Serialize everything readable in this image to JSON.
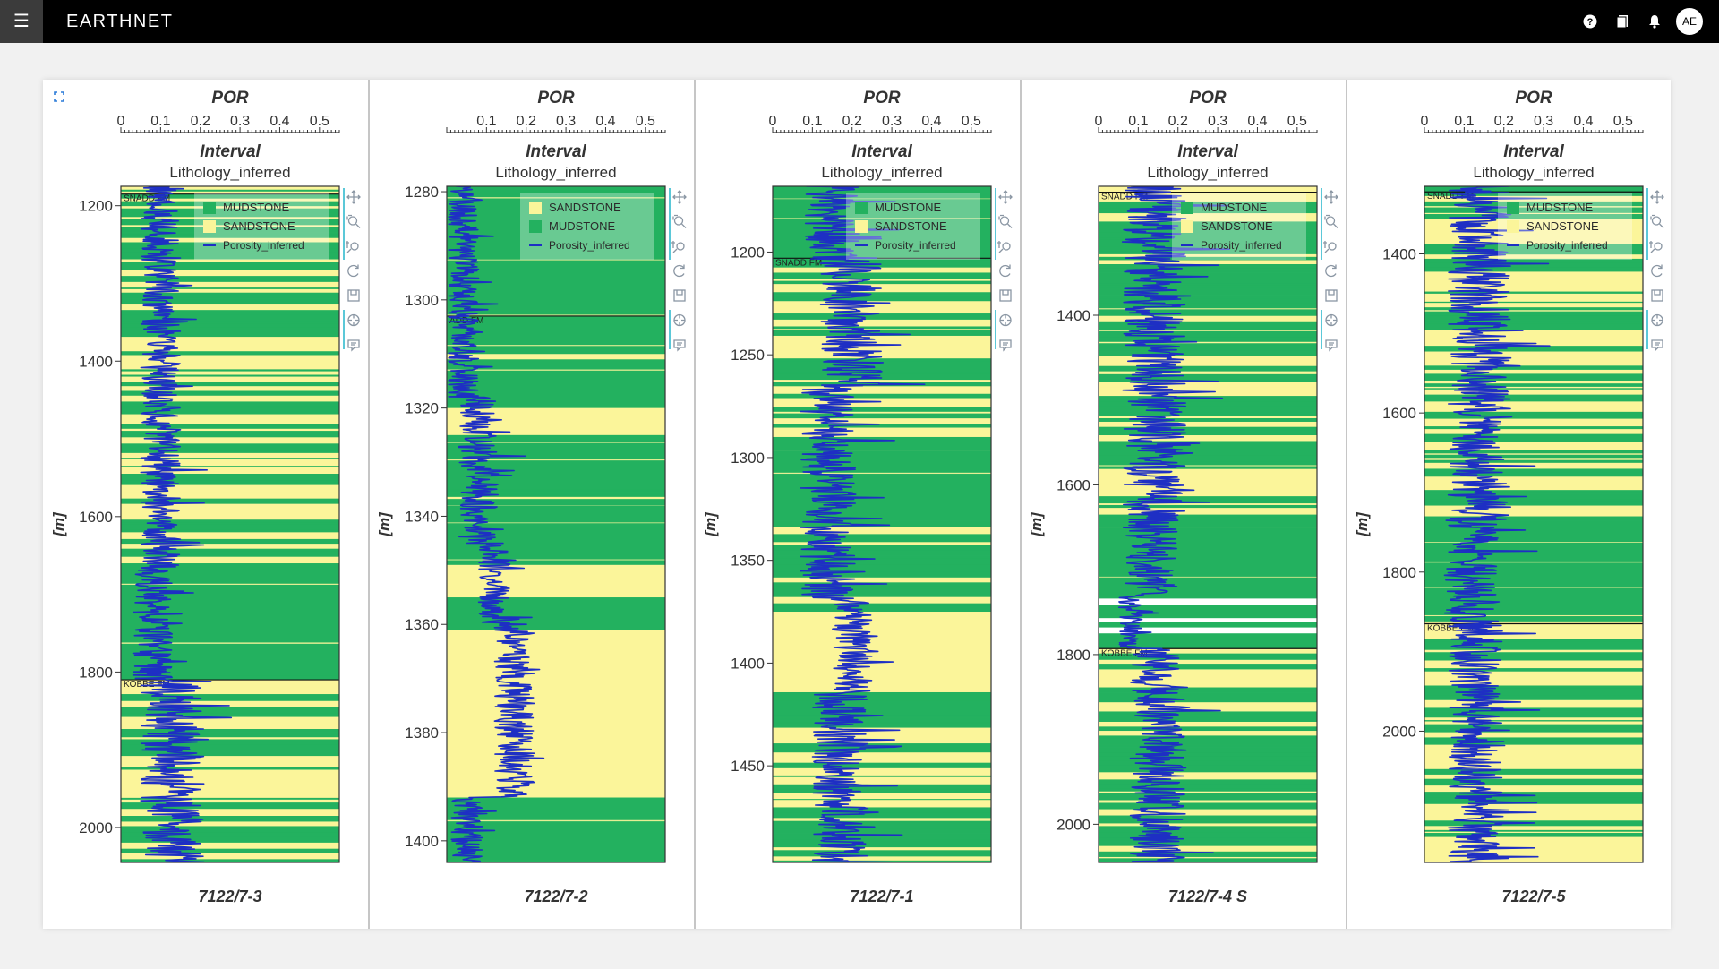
{
  "app": {
    "brand": "EARTHNET",
    "user_initials": "AE",
    "icons": [
      "menu-icon",
      "help-icon",
      "bookmark-icon",
      "bell-icon"
    ]
  },
  "colors": {
    "mudstone": "#23b15f",
    "sandstone": "#fbf59a",
    "porosity": "#1e2fc4",
    "topbar": "#000000",
    "tool_icon": "#8a96a3",
    "tool_accent": "#5bc8d8"
  },
  "toolbar_tools": [
    "pan-icon",
    "box-zoom-icon",
    "wheel-zoom-icon",
    "reset-icon",
    "save-icon",
    "crosshair-icon",
    "hover-icon"
  ],
  "chart_data": [
    {
      "type": "line",
      "well": "7122/7-3",
      "title": "POR",
      "subtitle": "Interval",
      "track_label": "Lithology_inferred",
      "ylabel": "[m]",
      "x_ticks": [
        "0",
        "0.1",
        "0.2",
        "0.3",
        "0.4",
        "0.5"
      ],
      "xlim": [
        0,
        0.55
      ],
      "ylim": [
        1175,
        2045
      ],
      "y_ticks": [
        "1200",
        "1400",
        "1600",
        "1800",
        "2000"
      ],
      "formations": [
        {
          "name": "SNADD FM",
          "depth": 1185
        },
        {
          "name": "KOBBE FM",
          "depth": 1810
        }
      ],
      "legend": [
        "MUDSTONE",
        "SANDSTONE",
        "Porosity_inferred"
      ],
      "lithology": [
        {
          "from": 1175,
          "to": 1265,
          "lith": "mixed"
        },
        {
          "from": 1265,
          "to": 1665,
          "lith": "mixed-sand"
        },
        {
          "from": 1665,
          "to": 1805,
          "lith": "mud"
        },
        {
          "from": 1805,
          "to": 2045,
          "lith": "mixed"
        }
      ],
      "porosity_segments": [
        {
          "from": 1175,
          "to": 1665,
          "base": 0.1,
          "amp": 0.05
        },
        {
          "from": 1665,
          "to": 1810,
          "base": 0.08,
          "amp": 0.05
        },
        {
          "from": 1810,
          "to": 2045,
          "base": 0.13,
          "amp": 0.08
        }
      ]
    },
    {
      "type": "line",
      "well": "7122/7-2",
      "title": "POR",
      "subtitle": "Interval",
      "track_label": "Lithology_inferred",
      "ylabel": "[m]",
      "x_ticks": [
        "0.1",
        "0.2",
        "0.3",
        "0.4",
        "0.5"
      ],
      "xlim": [
        0,
        0.55
      ],
      "ylim": [
        1279,
        1404
      ],
      "y_ticks": [
        "1280",
        "1300",
        "1320",
        "1340",
        "1360",
        "1380",
        "1400"
      ],
      "formations": [
        {
          "name": "ADD FM",
          "depth": 1303
        }
      ],
      "legend": [
        "SANDSTONE",
        "MUDSTONE",
        "Porosity_inferred"
      ],
      "lithology": [
        {
          "from": 1279,
          "to": 1310,
          "lith": "mud"
        },
        {
          "from": 1310,
          "to": 1311,
          "lith": "sand"
        },
        {
          "from": 1311,
          "to": 1320,
          "lith": "mud"
        },
        {
          "from": 1320,
          "to": 1325,
          "lith": "sand"
        },
        {
          "from": 1325,
          "to": 1334,
          "lith": "mud"
        },
        {
          "from": 1334,
          "to": 1338,
          "lith": "mixed"
        },
        {
          "from": 1338,
          "to": 1349,
          "lith": "mud"
        },
        {
          "from": 1349,
          "to": 1355,
          "lith": "sand"
        },
        {
          "from": 1355,
          "to": 1361,
          "lith": "mud"
        },
        {
          "from": 1361,
          "to": 1392,
          "lith": "sand"
        },
        {
          "from": 1392,
          "to": 1404,
          "lith": "mud"
        }
      ],
      "porosity_segments": [
        {
          "from": 1279,
          "to": 1318,
          "base": 0.04,
          "amp": 0.04
        },
        {
          "from": 1318,
          "to": 1345,
          "base": 0.08,
          "amp": 0.05
        },
        {
          "from": 1345,
          "to": 1360,
          "base": 0.12,
          "amp": 0.04
        },
        {
          "from": 1360,
          "to": 1392,
          "base": 0.17,
          "amp": 0.05
        },
        {
          "from": 1392,
          "to": 1404,
          "base": 0.05,
          "amp": 0.04
        }
      ]
    },
    {
      "type": "line",
      "well": "7122/7-1",
      "title": "POR",
      "subtitle": "Interval",
      "track_label": "Lithology_inferred",
      "ylabel": "[m]",
      "x_ticks": [
        "0",
        "0.1",
        "0.2",
        "0.3",
        "0.4",
        "0.5"
      ],
      "xlim": [
        0,
        0.55
      ],
      "ylim": [
        1168,
        1497
      ],
      "y_ticks": [
        "1200",
        "1250",
        "1300",
        "1350",
        "1400",
        "1450"
      ],
      "formations": [
        {
          "name": "SNADD FM",
          "depth": 1203
        }
      ],
      "legend": [
        "MUDSTONE",
        "SANDSTONE",
        "Porosity_inferred"
      ],
      "lithology": [
        {
          "from": 1168,
          "to": 1204,
          "lith": "mud"
        },
        {
          "from": 1204,
          "to": 1290,
          "lith": "mixed-sand"
        },
        {
          "from": 1290,
          "to": 1330,
          "lith": "mud"
        },
        {
          "from": 1330,
          "to": 1375,
          "lith": "mixed"
        },
        {
          "from": 1375,
          "to": 1410,
          "lith": "sand"
        },
        {
          "from": 1410,
          "to": 1497,
          "lith": "mixed"
        }
      ],
      "porosity_segments": [
        {
          "from": 1168,
          "to": 1204,
          "base": 0.15,
          "amp": 0.07
        },
        {
          "from": 1204,
          "to": 1265,
          "base": 0.2,
          "amp": 0.08
        },
        {
          "from": 1265,
          "to": 1370,
          "base": 0.14,
          "amp": 0.07
        },
        {
          "from": 1370,
          "to": 1415,
          "base": 0.2,
          "amp": 0.05
        },
        {
          "from": 1415,
          "to": 1497,
          "base": 0.17,
          "amp": 0.07
        }
      ]
    },
    {
      "type": "line",
      "well": "7122/7-4 S",
      "title": "POR",
      "subtitle": "Interval",
      "track_label": "Lithology_inferred",
      "ylabel": "[m]",
      "x_ticks": [
        "0",
        "0.1",
        "0.2",
        "0.3",
        "0.4",
        "0.5"
      ],
      "xlim": [
        0,
        0.55
      ],
      "ylim": [
        1248,
        2045
      ],
      "y_ticks": [
        "1400",
        "1600",
        "1800",
        "2000"
      ],
      "formations": [
        {
          "name": "SNADD FM",
          "depth": 1255
        },
        {
          "name": "KOBBE FM",
          "depth": 1793
        }
      ],
      "legend": [
        "MUDSTONE",
        "SANDSTONE",
        "Porosity_inferred"
      ],
      "lithology": [
        {
          "from": 1248,
          "to": 1640,
          "lith": "mixed"
        },
        {
          "from": 1640,
          "to": 1734,
          "lith": "mud"
        },
        {
          "from": 1734,
          "to": 1741,
          "lith": "white"
        },
        {
          "from": 1741,
          "to": 1757,
          "lith": "mud"
        },
        {
          "from": 1757,
          "to": 1762,
          "lith": "white"
        },
        {
          "from": 1762,
          "to": 1768,
          "lith": "mud"
        },
        {
          "from": 1768,
          "to": 1775,
          "lith": "white"
        },
        {
          "from": 1775,
          "to": 1793,
          "lith": "mud"
        },
        {
          "from": 1793,
          "to": 2045,
          "lith": "mixed"
        }
      ],
      "porosity_segments": [
        {
          "from": 1248,
          "to": 1640,
          "base": 0.14,
          "amp": 0.08
        },
        {
          "from": 1640,
          "to": 1732,
          "base": 0.13,
          "amp": 0.07
        },
        {
          "from": 1732,
          "to": 1793,
          "base": 0.08,
          "amp": 0.03
        },
        {
          "from": 1793,
          "to": 2045,
          "base": 0.15,
          "amp": 0.07
        }
      ]
    },
    {
      "type": "line",
      "well": "7122/7-5",
      "title": "POR",
      "subtitle": "Interval",
      "track_label": "Lithology_inferred",
      "ylabel": "[m]",
      "x_ticks": [
        "0",
        "0.1",
        "0.2",
        "0.3",
        "0.4",
        "0.5"
      ],
      "xlim": [
        0,
        0.55
      ],
      "ylim": [
        1315,
        2165
      ],
      "y_ticks": [
        "1400",
        "1600",
        "1800",
        "2000"
      ],
      "formations": [
        {
          "name": "SNADD FM",
          "depth": 1322
        },
        {
          "name": "KOBBE FM",
          "depth": 1865
        }
      ],
      "legend": [
        "MUDSTONE",
        "SANDSTONE",
        "Porosity_inferred"
      ],
      "lithology": [
        {
          "from": 1315,
          "to": 1735,
          "lith": "mixed"
        },
        {
          "from": 1735,
          "to": 1862,
          "lith": "mud"
        },
        {
          "from": 1862,
          "to": 2165,
          "lith": "mixed"
        }
      ],
      "porosity_segments": [
        {
          "from": 1315,
          "to": 1735,
          "base": 0.14,
          "amp": 0.08
        },
        {
          "from": 1735,
          "to": 1862,
          "base": 0.12,
          "amp": 0.07
        },
        {
          "from": 1862,
          "to": 2165,
          "base": 0.13,
          "amp": 0.07
        }
      ]
    }
  ]
}
